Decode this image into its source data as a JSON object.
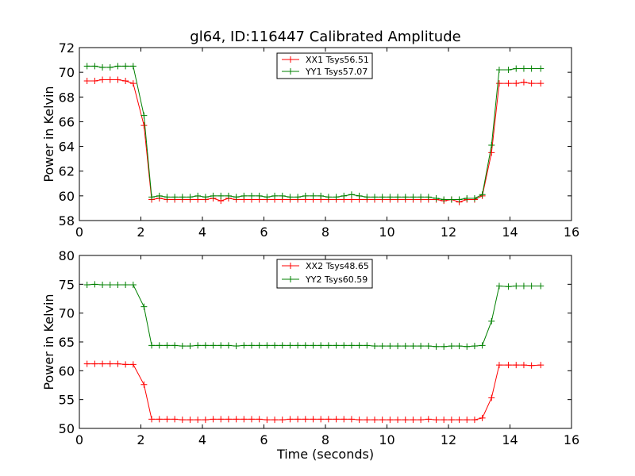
{
  "title": "gl64, ID:116447 Calibrated Amplitude",
  "chart_data": [
    {
      "type": "line",
      "ylabel": "Power in Kelvin",
      "xlabel": "",
      "xlim": [
        0,
        16
      ],
      "ylim": [
        58,
        72
      ],
      "xticks": [
        "0",
        "2",
        "4",
        "6",
        "8",
        "10",
        "12",
        "14",
        "16"
      ],
      "yticks": [
        "58",
        "60",
        "62",
        "64",
        "66",
        "68",
        "70",
        "72"
      ],
      "legend_position": "top-center",
      "x": [
        0.25,
        0.5,
        0.75,
        1.0,
        1.25,
        1.5,
        1.75,
        2.1,
        2.35,
        2.6,
        2.85,
        3.1,
        3.35,
        3.6,
        3.85,
        4.1,
        4.35,
        4.6,
        4.85,
        5.1,
        5.35,
        5.6,
        5.85,
        6.1,
        6.35,
        6.6,
        6.85,
        7.1,
        7.35,
        7.6,
        7.85,
        8.1,
        8.35,
        8.6,
        8.85,
        9.1,
        9.35,
        9.6,
        9.85,
        10.1,
        10.35,
        10.6,
        10.85,
        11.1,
        11.35,
        11.6,
        11.85,
        12.1,
        12.35,
        12.6,
        12.85,
        13.1,
        13.4,
        13.65,
        13.95,
        14.2,
        14.45,
        14.7,
        15.0
      ],
      "series": [
        {
          "name": "XX1 Tsys56.51",
          "color": "#ff0000",
          "values": [
            69.3,
            69.3,
            69.4,
            69.4,
            69.4,
            69.3,
            69.1,
            65.7,
            59.7,
            59.8,
            59.7,
            59.7,
            59.7,
            59.7,
            59.7,
            59.7,
            59.8,
            59.6,
            59.8,
            59.7,
            59.7,
            59.7,
            59.7,
            59.7,
            59.7,
            59.7,
            59.7,
            59.7,
            59.7,
            59.7,
            59.7,
            59.7,
            59.7,
            59.7,
            59.7,
            59.7,
            59.7,
            59.7,
            59.7,
            59.7,
            59.7,
            59.7,
            59.7,
            59.7,
            59.7,
            59.7,
            59.6,
            59.7,
            59.5,
            59.7,
            59.7,
            60.0,
            63.5,
            69.1,
            69.1,
            69.1,
            69.2,
            69.1,
            69.1
          ]
        },
        {
          "name": "YY1 Tsys57.07",
          "color": "#008000",
          "values": [
            70.5,
            70.5,
            70.4,
            70.4,
            70.5,
            70.5,
            70.5,
            66.5,
            59.9,
            60.0,
            59.9,
            59.9,
            59.9,
            59.9,
            60.0,
            59.9,
            60.0,
            60.0,
            60.0,
            59.9,
            60.0,
            60.0,
            60.0,
            59.9,
            60.0,
            60.0,
            59.9,
            59.9,
            60.0,
            60.0,
            60.0,
            59.9,
            59.9,
            60.0,
            60.1,
            60.0,
            59.9,
            59.9,
            59.9,
            59.9,
            59.9,
            59.9,
            59.9,
            59.9,
            59.9,
            59.8,
            59.7,
            59.7,
            59.7,
            59.8,
            59.8,
            60.1,
            64.1,
            70.2,
            70.2,
            70.3,
            70.3,
            70.3,
            70.3
          ]
        }
      ]
    },
    {
      "type": "line",
      "ylabel": "Power in Kelvin",
      "xlabel": "Time (seconds)",
      "xlim": [
        0,
        16
      ],
      "ylim": [
        50,
        80
      ],
      "xticks": [
        "0",
        "2",
        "4",
        "6",
        "8",
        "10",
        "12",
        "14",
        "16"
      ],
      "yticks": [
        "50",
        "55",
        "60",
        "65",
        "70",
        "75",
        "80"
      ],
      "legend_position": "top-center",
      "x": [
        0.25,
        0.5,
        0.75,
        1.0,
        1.25,
        1.5,
        1.75,
        2.1,
        2.35,
        2.6,
        2.85,
        3.1,
        3.35,
        3.6,
        3.85,
        4.1,
        4.35,
        4.6,
        4.85,
        5.1,
        5.35,
        5.6,
        5.85,
        6.1,
        6.35,
        6.6,
        6.85,
        7.1,
        7.35,
        7.6,
        7.85,
        8.1,
        8.35,
        8.6,
        8.85,
        9.1,
        9.35,
        9.6,
        9.85,
        10.1,
        10.35,
        10.6,
        10.85,
        11.1,
        11.35,
        11.6,
        11.85,
        12.1,
        12.35,
        12.6,
        12.85,
        13.1,
        13.4,
        13.65,
        13.95,
        14.2,
        14.45,
        14.7,
        15.0
      ],
      "series": [
        {
          "name": "XX2 Tsys48.65",
          "color": "#ff0000",
          "values": [
            61.2,
            61.2,
            61.2,
            61.2,
            61.2,
            61.1,
            61.1,
            57.6,
            51.6,
            51.6,
            51.6,
            51.6,
            51.5,
            51.5,
            51.5,
            51.5,
            51.6,
            51.6,
            51.6,
            51.6,
            51.6,
            51.6,
            51.6,
            51.5,
            51.5,
            51.5,
            51.6,
            51.6,
            51.6,
            51.6,
            51.6,
            51.6,
            51.6,
            51.6,
            51.6,
            51.5,
            51.5,
            51.5,
            51.5,
            51.5,
            51.5,
            51.5,
            51.5,
            51.5,
            51.6,
            51.5,
            51.5,
            51.5,
            51.5,
            51.5,
            51.5,
            51.8,
            55.3,
            61.0,
            61.0,
            61.0,
            61.0,
            60.9,
            61.0
          ]
        },
        {
          "name": "YY2 Tsys60.59",
          "color": "#008000",
          "values": [
            74.9,
            75.0,
            74.9,
            74.9,
            74.9,
            74.9,
            74.9,
            71.1,
            64.4,
            64.4,
            64.4,
            64.4,
            64.3,
            64.3,
            64.4,
            64.4,
            64.4,
            64.4,
            64.4,
            64.3,
            64.4,
            64.4,
            64.4,
            64.4,
            64.4,
            64.4,
            64.4,
            64.4,
            64.4,
            64.4,
            64.4,
            64.4,
            64.4,
            64.4,
            64.4,
            64.4,
            64.4,
            64.3,
            64.3,
            64.3,
            64.3,
            64.3,
            64.3,
            64.3,
            64.3,
            64.2,
            64.2,
            64.3,
            64.3,
            64.2,
            64.3,
            64.4,
            68.6,
            74.7,
            74.6,
            74.7,
            74.7,
            74.7,
            74.7
          ]
        }
      ]
    }
  ]
}
